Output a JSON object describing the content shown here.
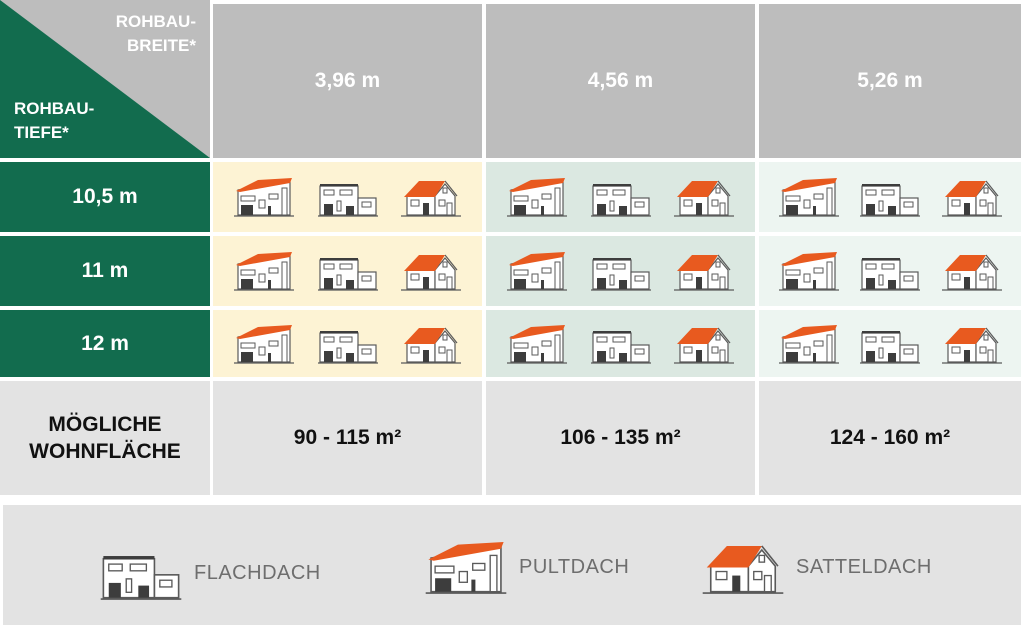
{
  "header": {
    "width_label": "ROHBAU-\nBREITE*",
    "depth_label": "ROHBAU-\nTIEFE*",
    "widths": [
      "3,96 m",
      "4,56 m",
      "5,26 m"
    ]
  },
  "rows": [
    "10,5 m",
    "11 m",
    "12 m"
  ],
  "area": {
    "label": "MÖGLICHE\nWOHNFLÄCHE",
    "values": [
      "90 - 115 m²",
      "106 - 135 m²",
      "124 - 160 m²"
    ]
  },
  "house_types_per_cell": [
    "pultdach-icon",
    "flachdach-icon",
    "satteldach-icon"
  ],
  "legend": [
    {
      "icon": "flachdach-icon",
      "label": "FLACHDACH"
    },
    {
      "icon": "pultdach-icon",
      "label": "PULTDACH"
    },
    {
      "icon": "satteldach-icon",
      "label": "SATTELDACH"
    }
  ],
  "colors": {
    "green": "#126c4e",
    "header_gray": "#bdbdbd",
    "column_1_bg": "#fdf3d4",
    "column_2_bg": "#dbe8e1",
    "column_3_bg": "#edf5f1",
    "roof_orange": "#e85a1f"
  }
}
